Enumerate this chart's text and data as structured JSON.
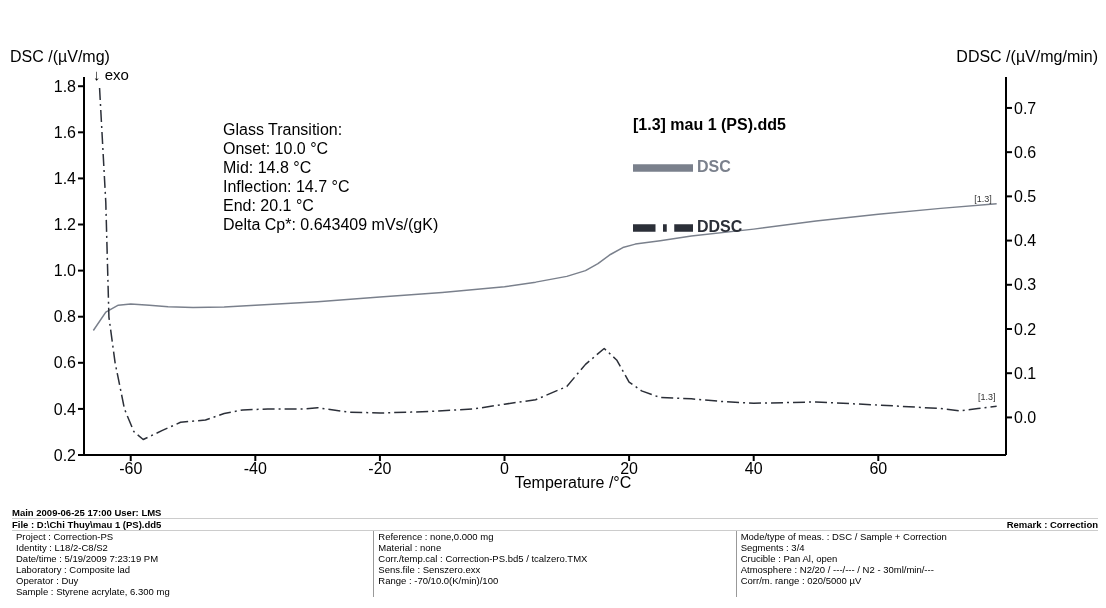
{
  "chart_data": {
    "type": "line",
    "xlabel": "Temperature /°C",
    "ylabel": "DSC /(µV/mg)",
    "y2label": "DDSC /(µV/mg/min)",
    "legend_title": "[1.3] mau 1 (PS).dd5",
    "legend": "top right",
    "marker": "none",
    "xlim": [
      -67.5,
      80.5
    ],
    "xticks": [
      -60,
      -40,
      -20,
      0,
      20,
      40,
      60
    ],
    "ylim": [
      0.2,
      1.84
    ],
    "yticks": [
      0.2,
      0.4,
      0.6,
      0.8,
      {
        "value": 1,
        "label": "1.0"
      },
      1.2,
      1.4,
      1.6,
      1.8
    ],
    "y2lim": [
      -0.085,
      0.77
    ],
    "y2ticks": [
      {
        "value": 0,
        "label": "0.0"
      },
      0.1,
      0.2,
      0.3,
      0.4,
      0.5,
      0.6,
      0.7
    ],
    "series": [
      {
        "name": "DSC",
        "color": "#7a808c",
        "line_style": "solid",
        "x": [
          -66,
          -64,
          -62,
          -60,
          -57,
          -54,
          -50,
          -45,
          -40,
          -30,
          -20,
          -10,
          0,
          5,
          10,
          13,
          15,
          17,
          19,
          21,
          25,
          30,
          40,
          50,
          60,
          70,
          79
        ],
        "values": [
          0.74,
          0.82,
          0.85,
          0.855,
          0.85,
          0.843,
          0.84,
          0.842,
          0.85,
          0.865,
          0.885,
          0.905,
          0.93,
          0.95,
          0.975,
          1.0,
          1.03,
          1.07,
          1.1,
          1.115,
          1.13,
          1.15,
          1.18,
          1.215,
          1.245,
          1.27,
          1.29
        ]
      },
      {
        "name": "DDSC",
        "color": "#2b2f38",
        "line_style": "dashed",
        "axis": "y2",
        "x": [
          -65,
          -64,
          -63.5,
          -62.5,
          -61,
          -59.5,
          -58,
          -55,
          -52,
          -48,
          -45,
          -42,
          -38,
          -32,
          -30,
          -25,
          -20,
          -15,
          -10,
          -5,
          0,
          5,
          10,
          13,
          16,
          18,
          20,
          22,
          25,
          30,
          35,
          40,
          50,
          60,
          70,
          73,
          76,
          79
        ],
        "values": [
          0.745,
          0.486,
          0.227,
          0.123,
          0.019,
          -0.032,
          -0.05,
          -0.03,
          -0.011,
          -0.006,
          0.009,
          0.017,
          0.019,
          0.019,
          0.022,
          0.012,
          0.01,
          0.012,
          0.015,
          0.019,
          0.03,
          0.04,
          0.07,
          0.12,
          0.156,
          0.13,
          0.08,
          0.06,
          0.045,
          0.042,
          0.036,
          0.032,
          0.035,
          0.028,
          0.02,
          0.015,
          0.02,
          0.025
        ]
      }
    ],
    "annotations": [
      "Glass Transition:",
      "Onset: 10.0 °C",
      "Mid: 14.8 °C",
      "Inflection: 14.7 °C",
      "End: 20.1 °C",
      "Delta Cp*: 0.643409 mVs/(gK)",
      "↓ exo",
      "[1.3]",
      {
        "text": "[1.3]",
        "x": 79,
        "y": 1.31
      },
      "Main 2009-06-25 17:00 User: LMS",
      "File : D:\\Chi Thuy\\mau 1 (PS).dd5",
      "Remark : Correction",
      "Project : Correction-PS",
      "Identity : L18/2-C8/S2",
      "Date/time : 5/19/2009 7:23:19 PM",
      "Laboratory : Composite lad",
      "Operator : Duy",
      "Sample : Styrene acrylate, 6.300 mg",
      "Reference : none,0.000 mg",
      "Material : none",
      "Corr./temp.cal : Correction-PS.bd5 / tcalzero.TMX",
      "Sens.file : Senszero.exx",
      "Range : -70/10.0(K/min)/100",
      "Mode/type of meas. : DSC / Sample + Correction",
      "Segments : 3/4",
      "Crucible : Pan Al, open",
      "Atmosphere : N2/20 / ---/--- / N2 - 30ml/min/---",
      "Corr/m. range : 020/5000 µV"
    ]
  }
}
